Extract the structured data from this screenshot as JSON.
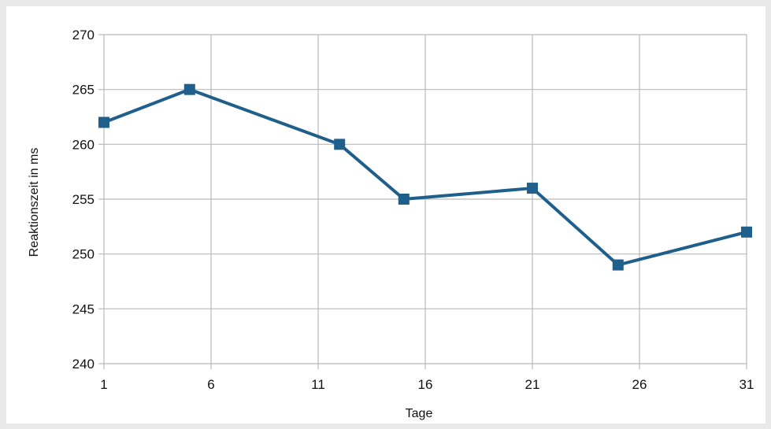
{
  "chart_data": {
    "type": "line",
    "title": "",
    "xlabel": "Tage",
    "ylabel": "Reaktionszeit in ms",
    "xlim": [
      1,
      31
    ],
    "ylim": [
      240,
      270
    ],
    "xticks": [
      1,
      6,
      11,
      16,
      21,
      26,
      31
    ],
    "yticks": [
      240,
      245,
      250,
      255,
      260,
      265,
      270
    ],
    "grid": true,
    "legend": "none",
    "series": [
      {
        "color": "#1f5f8b",
        "marker": "square",
        "points": [
          {
            "x": 1,
            "y": 262
          },
          {
            "x": 5,
            "y": 265
          },
          {
            "x": 12,
            "y": 260
          },
          {
            "x": 15,
            "y": 255
          },
          {
            "x": 21,
            "y": 256
          },
          {
            "x": 25,
            "y": 249
          },
          {
            "x": 31,
            "y": 252
          }
        ]
      }
    ]
  }
}
